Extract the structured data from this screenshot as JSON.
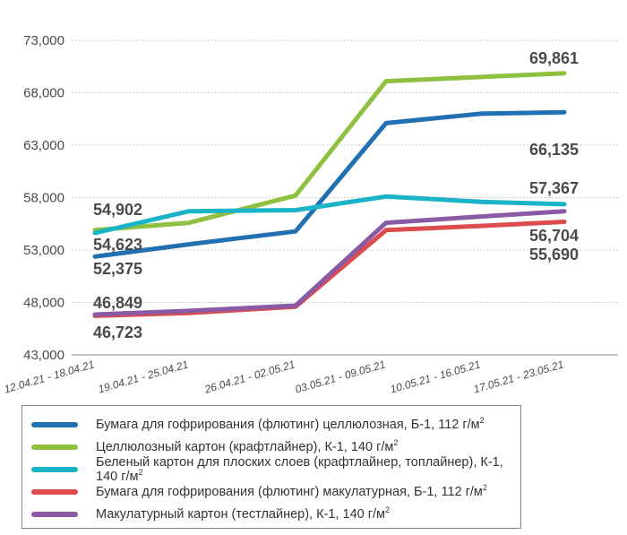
{
  "chart_data": {
    "type": "line",
    "categories": [
      "12.04.21 - 18.04.21",
      "19.04.21 - 25.04.21",
      "26.04.21 - 02.05.21",
      "03.05.21 - 09.05.21",
      "10.05.21 - 16.05.21",
      "17.05.21 - 23.05.21"
    ],
    "y_ticks": [
      "43,000",
      "48,000",
      "53,000",
      "58,000",
      "63,000",
      "68,000",
      "73,000"
    ],
    "ylim": [
      43000,
      73000
    ],
    "grid": "horizontal",
    "legend_position": "bottom",
    "series": [
      {
        "name": "Бумага для гофрирования (флютинг) целлюлозная, Б-1, 112 г/м",
        "unit_superscript": "2",
        "color": "#2170b1",
        "values": [
          52375,
          53550,
          54780,
          65100,
          66000,
          66135
        ],
        "first_label": "52,375",
        "last_label": "66,135"
      },
      {
        "name": "Целлюлозный картон (крафтлайнер), К-1, 140 г/м",
        "unit_superscript": "2",
        "color": "#8fc03f",
        "values": [
          54902,
          55600,
          58200,
          69100,
          69500,
          69861
        ],
        "first_label": "54,902",
        "last_label": "69,861"
      },
      {
        "name": "Беленый картон для плоских слоев (крафтлайнер, топлайнер), К-1, 140 г/м",
        "unit_superscript": "2",
        "color": "#1bb3c8",
        "values": [
          54623,
          56700,
          56800,
          58100,
          57600,
          57367
        ],
        "first_label": "54,623",
        "last_label": "57,367"
      },
      {
        "name": "Бумага для гофрирования (флютинг) макулатурная, Б-1, 112 г/м",
        "unit_superscript": "2",
        "color": "#de4b4b",
        "values": [
          46723,
          47000,
          47600,
          54900,
          55300,
          55690
        ],
        "first_label": "46,723",
        "last_label": "55,690"
      },
      {
        "name": "Макулатурный картон (тестлайнер), К-1, 140 г/м",
        "unit_superscript": "2",
        "color": "#8a5aa5",
        "values": [
          46849,
          47200,
          47700,
          55600,
          56200,
          56704
        ],
        "first_label": "46,849",
        "last_label": "56,704"
      }
    ]
  }
}
